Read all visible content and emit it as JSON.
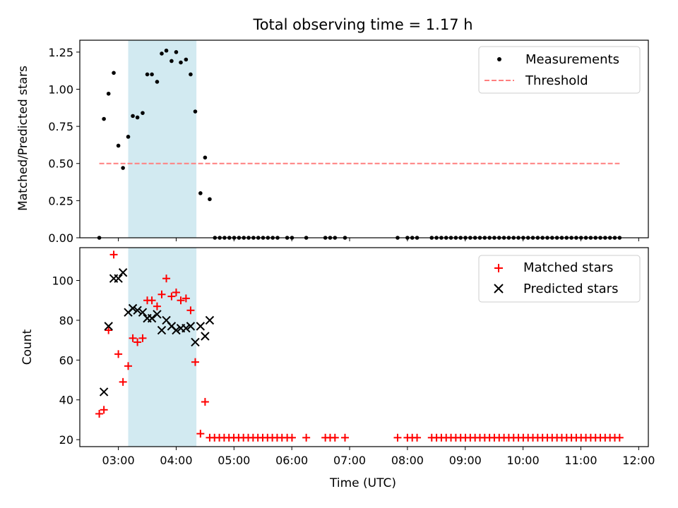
{
  "chart_data": {
    "title": "Total observing time = 1.17 h",
    "x_range_hours": [
      2.333,
      12.167
    ],
    "x_tick_labels": [
      "03:00",
      "04:00",
      "05:00",
      "06:00",
      "07:00",
      "08:00",
      "09:00",
      "10:00",
      "11:00",
      "12:00"
    ],
    "x_ticks_hours": [
      3,
      4,
      5,
      6,
      7,
      8,
      9,
      10,
      11,
      12
    ],
    "xlabel": "Time (UTC)",
    "shaded_interval_hours": [
      3.17,
      4.35
    ],
    "shade_color": "#add8e6",
    "top": {
      "type": "scatter",
      "ylabel": "Matched/Predicted stars",
      "ylim": [
        0.0,
        1.33
      ],
      "y_ticks": [
        "0.00",
        "0.25",
        "0.50",
        "0.75",
        "1.00",
        "1.25"
      ],
      "legend": [
        "Measurements",
        "Threshold"
      ],
      "threshold": {
        "value": 0.5,
        "x_range_hours": [
          2.67,
          11.67
        ],
        "color": "#ff7f7f"
      },
      "measurements_x": [
        2.67,
        2.75,
        2.83,
        2.92,
        3.0,
        3.08,
        3.17,
        3.25,
        3.33,
        3.42,
        3.5,
        3.58,
        3.67,
        3.75,
        3.83,
        3.92,
        4.0,
        4.08,
        4.17,
        4.25,
        4.33,
        4.42,
        4.5,
        4.58
      ],
      "measurements_y": [
        0.0,
        0.8,
        0.97,
        1.11,
        0.62,
        0.47,
        0.68,
        0.82,
        0.81,
        0.84,
        1.1,
        1.1,
        1.05,
        1.24,
        1.26,
        1.19,
        1.25,
        1.18,
        1.2,
        1.1,
        0.85,
        0.3,
        0.54,
        0.26
      ],
      "zero_segments": [
        [
          4.67,
          5.83
        ],
        [
          5.92,
          6.08
        ],
        [
          6.25,
          6.33
        ],
        [
          6.58,
          6.75
        ],
        [
          6.92,
          6.92
        ],
        [
          7.83,
          7.83
        ],
        [
          8.0,
          8.17
        ],
        [
          8.42,
          11.67
        ]
      ],
      "color": "#000000"
    },
    "bottom": {
      "type": "scatter",
      "ylabel": "Count",
      "ylim": [
        16.5,
        116.5
      ],
      "y_ticks": [
        "20",
        "40",
        "60",
        "80",
        "100"
      ],
      "legend": [
        "Matched stars",
        "Predicted stars"
      ],
      "matched_x": [
        2.67,
        2.75,
        2.83,
        2.92,
        3.0,
        3.08,
        3.17,
        3.25,
        3.33,
        3.42,
        3.5,
        3.58,
        3.67,
        3.75,
        3.83,
        3.92,
        4.0,
        4.08,
        4.17,
        4.25,
        4.33,
        4.42,
        4.5
      ],
      "matched_y": [
        33,
        35,
        75,
        113,
        63,
        49,
        57,
        71,
        69,
        71,
        90,
        90,
        87,
        93,
        101,
        92,
        94,
        90,
        91,
        85,
        59,
        23,
        39
      ],
      "matched_floor": 21,
      "matched_floor_segments": [
        [
          4.58,
          5.83
        ],
        [
          5.92,
          6.08
        ],
        [
          6.25,
          6.33
        ],
        [
          6.58,
          6.75
        ],
        [
          6.92,
          6.92
        ],
        [
          7.83,
          7.83
        ],
        [
          8.0,
          8.17
        ],
        [
          8.42,
          11.75
        ]
      ],
      "predicted_x": [
        2.75,
        2.83,
        2.92,
        3.0,
        3.08,
        3.17,
        3.25,
        3.33,
        3.42,
        3.5,
        3.58,
        3.67,
        3.75,
        3.83,
        3.92,
        4.0,
        4.08,
        4.17,
        4.25,
        4.33,
        4.42,
        4.5,
        4.58
      ],
      "predicted_y": [
        44,
        77,
        101,
        101,
        104,
        84,
        86,
        85,
        84,
        81,
        81,
        83,
        75,
        80,
        77,
        75,
        76,
        76,
        77,
        69,
        77,
        72,
        80
      ],
      "matched_color": "#ff0000",
      "predicted_color": "#000000"
    }
  }
}
